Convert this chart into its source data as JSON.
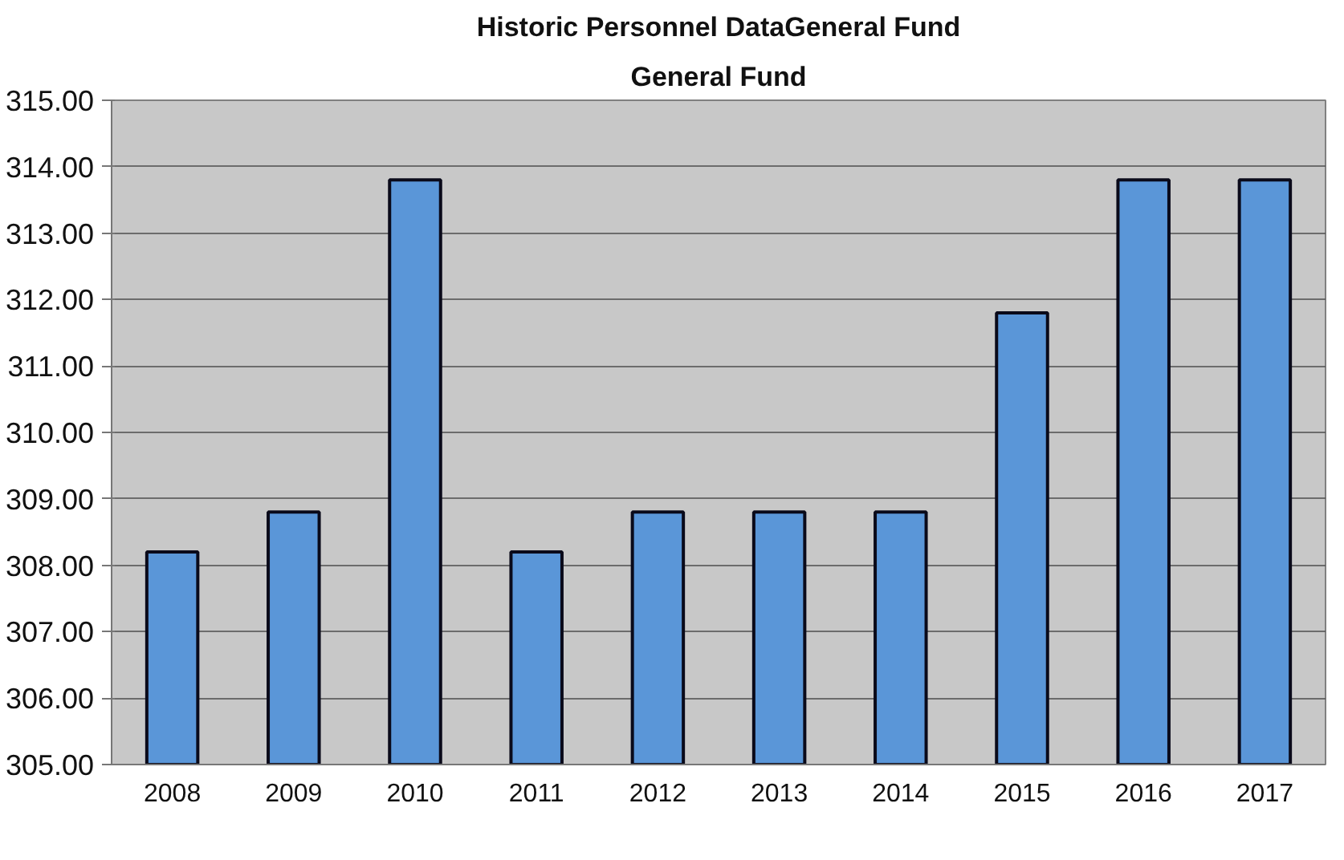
{
  "chart_data": {
    "type": "bar",
    "title": "Historic Personnel DataGeneral Fund",
    "subtitle": "General Fund",
    "categories": [
      "2008",
      "2009",
      "2010",
      "2011",
      "2012",
      "2013",
      "2014",
      "2015",
      "2016",
      "2017"
    ],
    "values": [
      308.2,
      308.8,
      313.8,
      308.2,
      308.8,
      308.8,
      308.8,
      311.8,
      313.8,
      313.8
    ],
    "color": "#5a96d8",
    "ylim": [
      305,
      315
    ],
    "yticks": [
      {
        "value": 305,
        "label": "305.00"
      },
      {
        "value": 306,
        "label": "306.00"
      },
      {
        "value": 307,
        "label": "307.00"
      },
      {
        "value": 308,
        "label": "308.00"
      },
      {
        "value": 309,
        "label": "309.00"
      },
      {
        "value": 310,
        "label": "310.00"
      },
      {
        "value": 311,
        "label": "311.00"
      },
      {
        "value": 312,
        "label": "312.00"
      },
      {
        "value": 313,
        "label": "313.00"
      },
      {
        "value": 314,
        "label": "314.00"
      },
      {
        "value": 315,
        "label": "315.00"
      }
    ],
    "grid": "y"
  }
}
